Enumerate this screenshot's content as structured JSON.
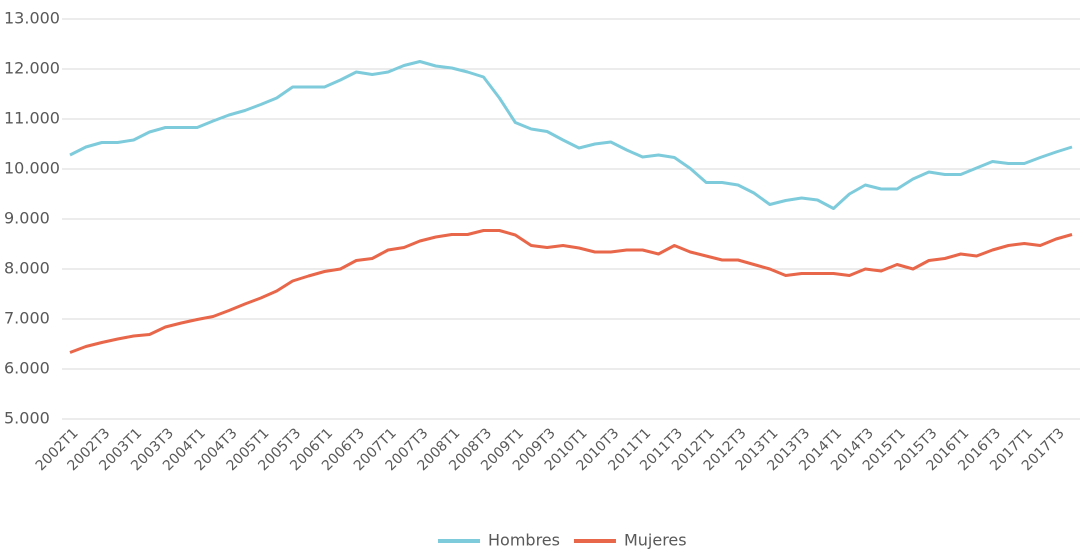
{
  "chart_data": {
    "type": "line",
    "categories": [
      "2002T1",
      null,
      "2002T3",
      null,
      "2003T1",
      null,
      "2003T3",
      null,
      "2004T1",
      null,
      "2004T3",
      null,
      "2005T1",
      null,
      "2005T3",
      null,
      "2006T1",
      null,
      "2006T3",
      null,
      "2007T1",
      null,
      "2007T3",
      null,
      "2008T1",
      null,
      "2008T3",
      null,
      "2009T1",
      null,
      "2009T3",
      null,
      "2010T1",
      null,
      "2010T3",
      null,
      "2011T1",
      null,
      "2011T3",
      null,
      "2012T1",
      null,
      "2012T3",
      null,
      "2013T1",
      null,
      "2013T3",
      null,
      "2014T1",
      null,
      "2014T3",
      null,
      "2015T1",
      null,
      "2015T3",
      null,
      "2016T1",
      null,
      "2016T3",
      null,
      "2017T1",
      null,
      "2017T3",
      null
    ],
    "series": [
      {
        "name": "Hombres",
        "color": "#7ecbdc",
        "values": [
          10280,
          10440,
          10530,
          10530,
          10580,
          10740,
          10830,
          10830,
          10830,
          10960,
          11080,
          11170,
          11290,
          11420,
          11640,
          11640,
          11640,
          11780,
          11940,
          11890,
          11940,
          12070,
          12150,
          12060,
          12020,
          11940,
          11840,
          11420,
          10930,
          10800,
          10750,
          10580,
          10420,
          10500,
          10540,
          10380,
          10240,
          10280,
          10230,
          10010,
          9730,
          9730,
          9680,
          9520,
          9290,
          9370,
          9420,
          9380,
          9210,
          9500,
          9680,
          9600,
          9600,
          9800,
          9940,
          9890,
          9890,
          10020,
          10150,
          10110,
          10110,
          10230,
          10340,
          10440
        ]
      },
      {
        "name": "Mujeres",
        "color": "#e8664a",
        "values": [
          6330,
          6450,
          6530,
          6600,
          6660,
          6690,
          6840,
          6920,
          6990,
          7050,
          7170,
          7300,
          7420,
          7560,
          7760,
          7860,
          7950,
          8000,
          8170,
          8210,
          8380,
          8430,
          8560,
          8640,
          8690,
          8690,
          8770,
          8770,
          8680,
          8470,
          8430,
          8470,
          8420,
          8340,
          8340,
          8380,
          8380,
          8300,
          8470,
          8340,
          8260,
          8180,
          8180,
          8090,
          8000,
          7870,
          7910,
          7910,
          7910,
          7870,
          8000,
          7960,
          8090,
          8000,
          8170,
          8210,
          8300,
          8260,
          8380,
          8470,
          8510,
          8470,
          8600,
          8690
        ]
      }
    ],
    "ylim": [
      5000,
      13000
    ],
    "yticks": [
      {
        "value": 5000,
        "label": "5.000"
      },
      {
        "value": 6000,
        "label": "6.000"
      },
      {
        "value": 7000,
        "label": "7.000"
      },
      {
        "value": 8000,
        "label": "8.000"
      },
      {
        "value": 9000,
        "label": "9.000"
      },
      {
        "value": 10000,
        "label": "10.000"
      },
      {
        "value": 11000,
        "label": "11.000"
      },
      {
        "value": 12000,
        "label": "12.000"
      },
      {
        "value": 13000,
        "label": "13.000"
      }
    ],
    "grid": true,
    "legend": "bottom"
  }
}
